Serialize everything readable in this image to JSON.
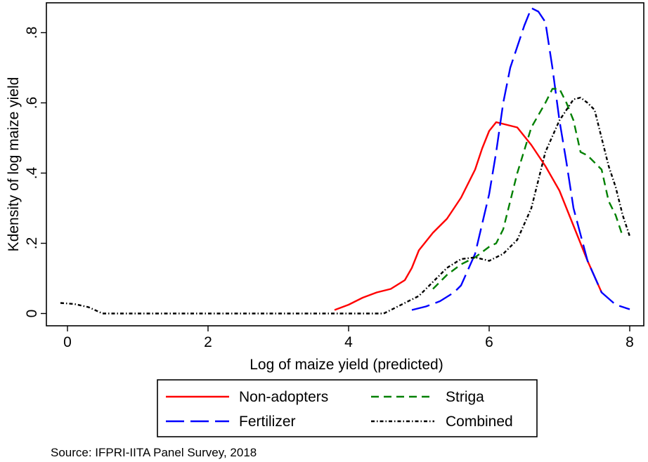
{
  "chart_data": {
    "type": "line",
    "title": "",
    "xlabel": "Log of maize yield (predicted)",
    "ylabel": "Kdensity of log maize yield",
    "xlim": [
      -0.3,
      8.2
    ],
    "ylim": [
      -0.035,
      0.885
    ],
    "xticks": [
      0,
      2,
      4,
      6,
      8
    ],
    "xtick_labels": [
      "0",
      "2",
      "4",
      "6",
      "8"
    ],
    "yticks": [
      0,
      0.2,
      0.4,
      0.6,
      0.8
    ],
    "ytick_labels": [
      "0",
      ".2",
      ".4",
      ".6",
      ".8"
    ],
    "grid": false,
    "legend_position": "bottom",
    "source_note": "Source:  IFPRI-IITA Panel Survey, 2018",
    "series": [
      {
        "name": "Non-adopters",
        "color": "#ff0000",
        "dash": "solid",
        "points": [
          [
            3.8,
            0.01
          ],
          [
            4.0,
            0.025
          ],
          [
            4.2,
            0.045
          ],
          [
            4.4,
            0.06
          ],
          [
            4.6,
            0.07
          ],
          [
            4.8,
            0.095
          ],
          [
            4.9,
            0.13
          ],
          [
            5.0,
            0.18
          ],
          [
            5.2,
            0.23
          ],
          [
            5.4,
            0.27
          ],
          [
            5.6,
            0.33
          ],
          [
            5.8,
            0.41
          ],
          [
            5.9,
            0.47
          ],
          [
            6.0,
            0.52
          ],
          [
            6.1,
            0.545
          ],
          [
            6.2,
            0.54
          ],
          [
            6.3,
            0.535
          ],
          [
            6.4,
            0.53
          ],
          [
            6.6,
            0.48
          ],
          [
            6.8,
            0.42
          ],
          [
            7.0,
            0.35
          ],
          [
            7.2,
            0.25
          ],
          [
            7.4,
            0.15
          ],
          [
            7.6,
            0.06
          ]
        ]
      },
      {
        "name": "Fertilizer",
        "color": "#0000ff",
        "dash": "long-dash",
        "points": [
          [
            4.9,
            0.01
          ],
          [
            5.1,
            0.02
          ],
          [
            5.3,
            0.035
          ],
          [
            5.5,
            0.06
          ],
          [
            5.6,
            0.08
          ],
          [
            5.8,
            0.17
          ],
          [
            6.0,
            0.34
          ],
          [
            6.1,
            0.46
          ],
          [
            6.2,
            0.6
          ],
          [
            6.3,
            0.7
          ],
          [
            6.4,
            0.76
          ],
          [
            6.5,
            0.82
          ],
          [
            6.6,
            0.87
          ],
          [
            6.7,
            0.86
          ],
          [
            6.8,
            0.83
          ],
          [
            6.9,
            0.7
          ],
          [
            7.0,
            0.55
          ],
          [
            7.1,
            0.43
          ],
          [
            7.2,
            0.3
          ],
          [
            7.4,
            0.15
          ],
          [
            7.6,
            0.06
          ],
          [
            7.8,
            0.025
          ],
          [
            8.0,
            0.012
          ]
        ]
      },
      {
        "name": "Striga",
        "color": "#008000",
        "dash": "dash",
        "points": [
          [
            5.2,
            0.07
          ],
          [
            5.4,
            0.11
          ],
          [
            5.6,
            0.14
          ],
          [
            5.8,
            0.16
          ],
          [
            6.0,
            0.19
          ],
          [
            6.1,
            0.2
          ],
          [
            6.2,
            0.24
          ],
          [
            6.4,
            0.4
          ],
          [
            6.6,
            0.53
          ],
          [
            6.8,
            0.6
          ],
          [
            6.9,
            0.64
          ],
          [
            7.0,
            0.64
          ],
          [
            7.1,
            0.6
          ],
          [
            7.2,
            0.55
          ],
          [
            7.3,
            0.46
          ],
          [
            7.4,
            0.45
          ],
          [
            7.6,
            0.41
          ],
          [
            7.7,
            0.32
          ],
          [
            7.8,
            0.28
          ],
          [
            7.9,
            0.22
          ]
        ]
      },
      {
        "name": "Combined",
        "color": "#000000",
        "dash": "dash-dot",
        "points": [
          [
            -0.1,
            0.03
          ],
          [
            0.1,
            0.027
          ],
          [
            0.3,
            0.018
          ],
          [
            0.5,
            0.0
          ],
          [
            1.0,
            0.0
          ],
          [
            2.0,
            0.0
          ],
          [
            3.0,
            0.0
          ],
          [
            4.0,
            0.0
          ],
          [
            4.5,
            0.0
          ],
          [
            4.8,
            0.03
          ],
          [
            5.0,
            0.05
          ],
          [
            5.2,
            0.09
          ],
          [
            5.4,
            0.13
          ],
          [
            5.6,
            0.155
          ],
          [
            5.8,
            0.16
          ],
          [
            6.0,
            0.15
          ],
          [
            6.2,
            0.17
          ],
          [
            6.4,
            0.21
          ],
          [
            6.6,
            0.3
          ],
          [
            6.8,
            0.46
          ],
          [
            7.0,
            0.55
          ],
          [
            7.2,
            0.61
          ],
          [
            7.3,
            0.615
          ],
          [
            7.4,
            0.6
          ],
          [
            7.5,
            0.58
          ],
          [
            7.6,
            0.5
          ],
          [
            7.7,
            0.42
          ],
          [
            7.8,
            0.36
          ],
          [
            7.9,
            0.28
          ],
          [
            8.0,
            0.22
          ]
        ]
      }
    ]
  }
}
